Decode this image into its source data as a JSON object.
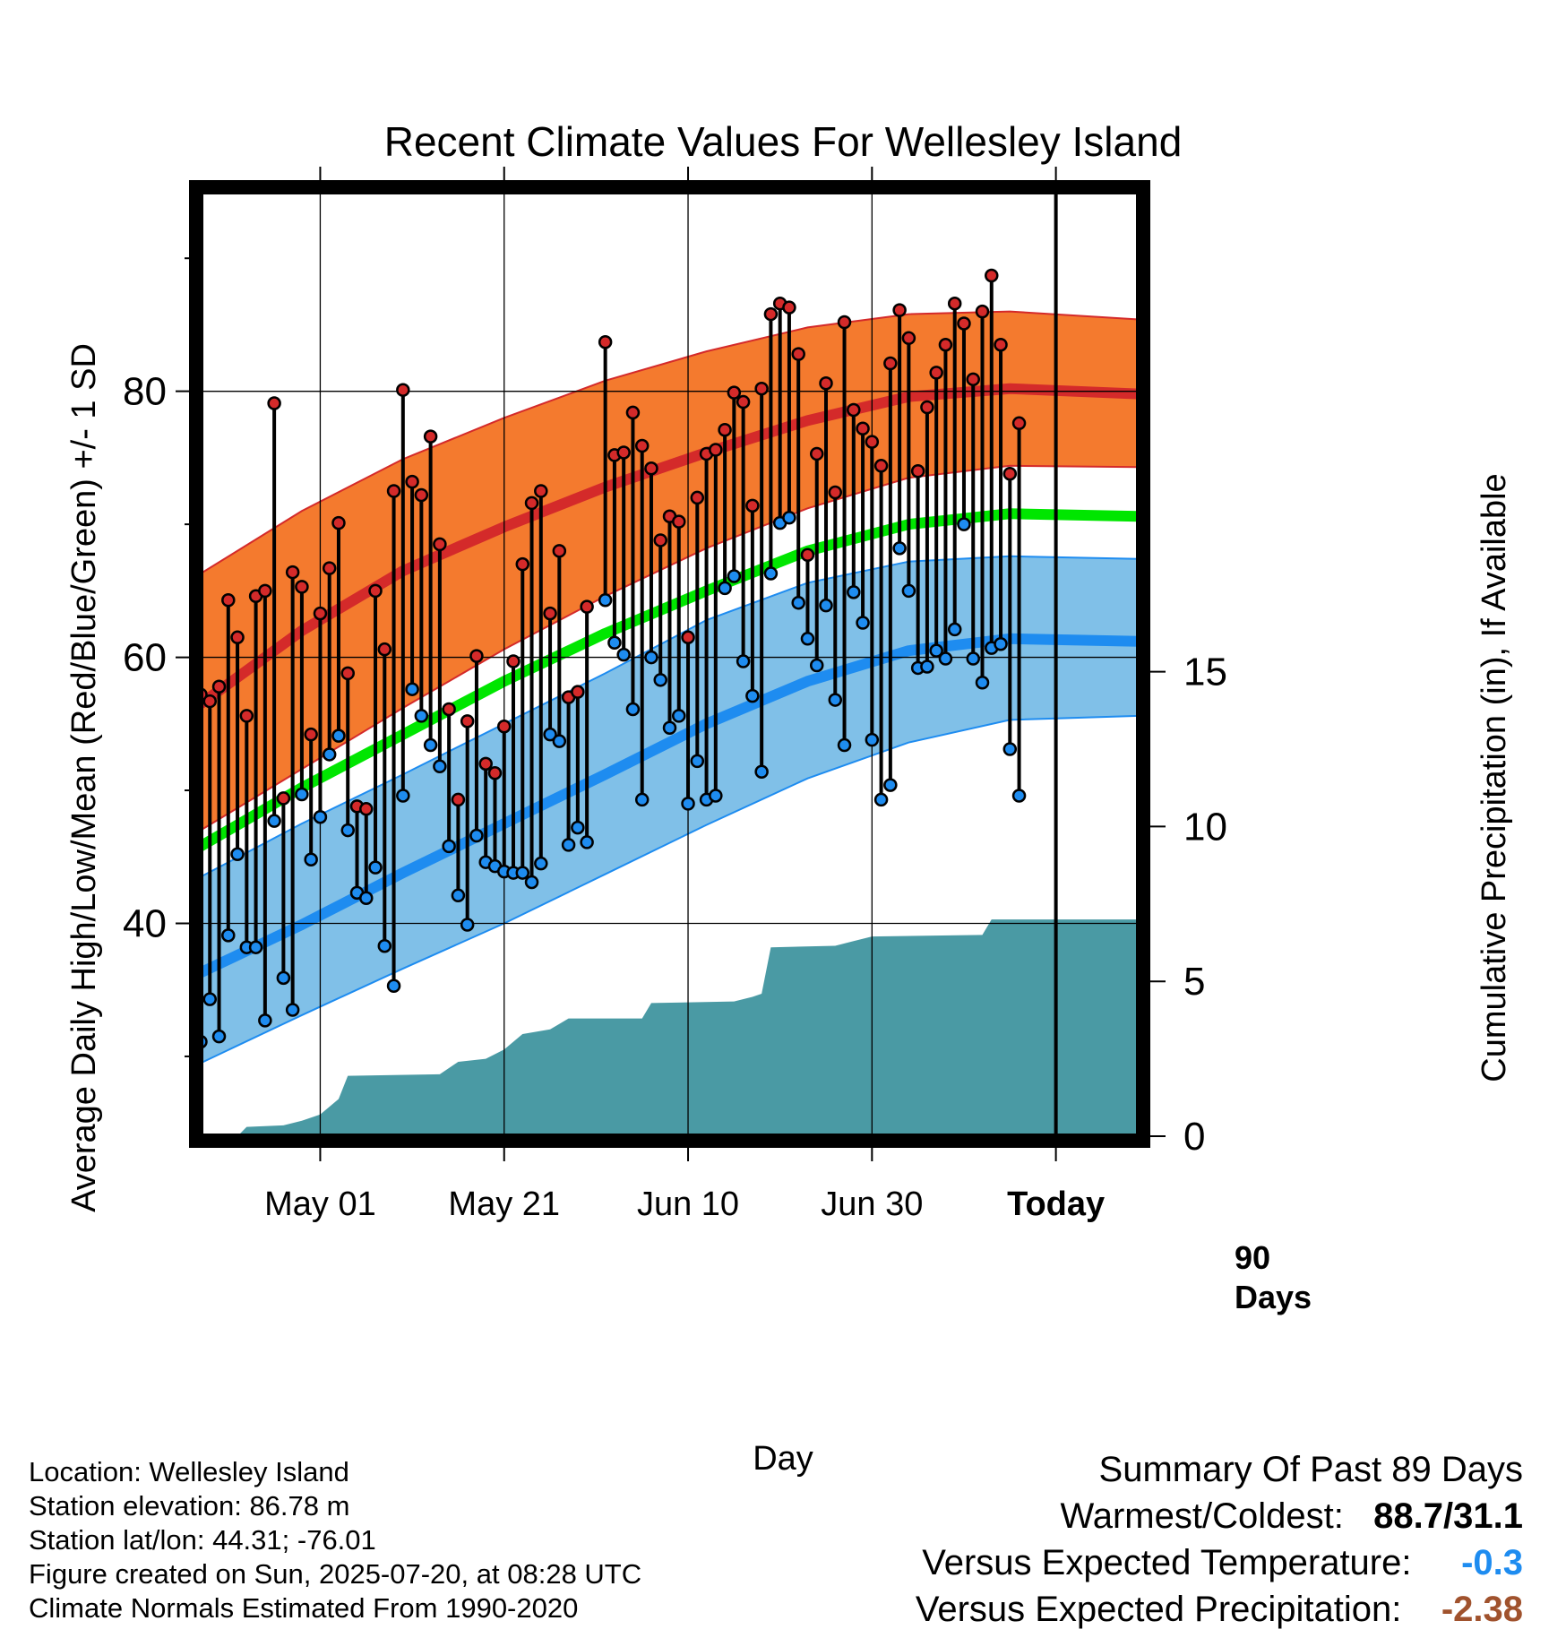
{
  "chart_data": {
    "type": "line",
    "title": "Recent Climate Values For Wellesley Island",
    "xlabel": "Day",
    "ylabel": "Average Daily High/Low/Mean (Red/Blue/Green) +/- 1 SD",
    "y2label": "Cumulative Precipitation (in), If Available",
    "x_start": "2025-04-18",
    "x_end": "2025-07-29",
    "today": "2025-07-20",
    "today_label": "90 Days",
    "ylim": [
      24,
      95
    ],
    "y2lim": [
      0,
      30.5
    ],
    "yticks": [
      40,
      60,
      80
    ],
    "y2ticks": [
      0,
      5,
      10,
      15
    ],
    "xticks": [
      {
        "date": "2025-05-01",
        "label": "May 01"
      },
      {
        "date": "2025-05-21",
        "label": "May 21"
      },
      {
        "date": "2025-06-10",
        "label": "Jun 10"
      },
      {
        "date": "2025-06-30",
        "label": "Jun 30"
      },
      {
        "date": "2025-07-20",
        "label": "Today"
      }
    ],
    "grid": true,
    "colors": {
      "high_band": "#f47a2e",
      "high_line": "#d42a2a",
      "low_band": "#80c0e8",
      "low_line": "#1e8cf0",
      "mean_line": "#00e600",
      "precip": "#4a9aa4",
      "high_dot": "#d42a2a",
      "low_dot": "#1e8cf0"
    },
    "normals": {
      "dates": [
        "2025-04-18",
        "2025-04-29",
        "2025-05-10",
        "2025-05-21",
        "2025-06-01",
        "2025-06-12",
        "2025-06-23",
        "2025-07-04",
        "2025-07-15",
        "2025-07-29"
      ],
      "high_mean": [
        56.5,
        62.0,
        66.5,
        69.8,
        72.8,
        75.4,
        77.8,
        79.6,
        80.2,
        79.8
      ],
      "high_plus_sd": [
        66.3,
        71.0,
        74.9,
        78.0,
        80.8,
        83.0,
        84.8,
        85.8,
        86.0,
        85.4
      ],
      "high_minus_sd": [
        47.0,
        51.6,
        56.2,
        60.6,
        64.6,
        68.2,
        71.2,
        73.5,
        74.4,
        74.3
      ],
      "mean": [
        45.8,
        50.2,
        54.2,
        58.2,
        61.8,
        65.0,
        68.0,
        70.0,
        70.8,
        70.6
      ],
      "low_mean": [
        36.3,
        39.9,
        43.8,
        47.5,
        51.2,
        55.0,
        58.2,
        60.5,
        61.4,
        61.2
      ],
      "low_plus_sd": [
        43.5,
        47.5,
        51.2,
        55.0,
        58.8,
        62.8,
        65.6,
        67.2,
        67.6,
        67.4
      ],
      "low_minus_sd": [
        29.5,
        33.1,
        36.6,
        40.0,
        43.7,
        47.4,
        50.9,
        53.6,
        55.3,
        55.6
      ]
    },
    "days": [
      {
        "date": "2025-04-18",
        "high": 57.2,
        "low": 31.1
      },
      {
        "date": "2025-04-19",
        "high": 56.7,
        "low": 34.3
      },
      {
        "date": "2025-04-20",
        "high": 57.8,
        "low": 31.5
      },
      {
        "date": "2025-04-21",
        "high": 64.3,
        "low": 39.1
      },
      {
        "date": "2025-04-22",
        "high": 61.5,
        "low": 45.2
      },
      {
        "date": "2025-04-23",
        "high": 55.6,
        "low": 38.2
      },
      {
        "date": "2025-04-24",
        "high": 64.6,
        "low": 38.2
      },
      {
        "date": "2025-04-25",
        "high": 65.0,
        "low": 32.7
      },
      {
        "date": "2025-04-26",
        "high": 79.1,
        "low": 47.7
      },
      {
        "date": "2025-04-27",
        "high": 49.4,
        "low": 35.9
      },
      {
        "date": "2025-04-28",
        "high": 66.4,
        "low": 33.5
      },
      {
        "date": "2025-04-29",
        "high": 65.3,
        "low": 49.7
      },
      {
        "date": "2025-04-30",
        "high": 54.2,
        "low": 44.8
      },
      {
        "date": "2025-05-01",
        "high": 63.3,
        "low": 48.0
      },
      {
        "date": "2025-05-02",
        "high": 66.7,
        "low": 52.7
      },
      {
        "date": "2025-05-03",
        "high": 70.1,
        "low": 54.1
      },
      {
        "date": "2025-05-04",
        "high": 58.8,
        "low": 47.0
      },
      {
        "date": "2025-05-05",
        "high": 48.8,
        "low": 42.3
      },
      {
        "date": "2025-05-06",
        "high": 48.6,
        "low": 41.9
      },
      {
        "date": "2025-05-07",
        "high": 65.0,
        "low": 44.2
      },
      {
        "date": "2025-05-08",
        "high": 60.6,
        "low": 38.3
      },
      {
        "date": "2025-05-09",
        "high": 72.5,
        "low": 35.3
      },
      {
        "date": "2025-05-10",
        "high": 80.1,
        "low": 49.6
      },
      {
        "date": "2025-05-11",
        "high": 73.2,
        "low": 57.6
      },
      {
        "date": "2025-05-12",
        "high": 72.2,
        "low": 55.6
      },
      {
        "date": "2025-05-13",
        "high": 76.6,
        "low": 53.4
      },
      {
        "date": "2025-05-14",
        "high": 68.5,
        "low": 51.8
      },
      {
        "date": "2025-05-15",
        "high": 56.1,
        "low": 45.8
      },
      {
        "date": "2025-05-16",
        "high": 49.3,
        "low": 42.1
      },
      {
        "date": "2025-05-17",
        "high": 55.2,
        "low": 39.9
      },
      {
        "date": "2025-05-18",
        "high": 60.1,
        "low": 46.6
      },
      {
        "date": "2025-05-19",
        "high": 52.0,
        "low": 44.6
      },
      {
        "date": "2025-05-20",
        "high": 51.3,
        "low": 44.3
      },
      {
        "date": "2025-05-21",
        "high": 54.8,
        "low": 43.9
      },
      {
        "date": "2025-05-22",
        "high": 59.7,
        "low": 43.8
      },
      {
        "date": "2025-05-23",
        "high": 67.0,
        "low": 43.8
      },
      {
        "date": "2025-05-24",
        "high": 71.6,
        "low": 43.1
      },
      {
        "date": "2025-05-25",
        "high": 72.5,
        "low": 44.5
      },
      {
        "date": "2025-05-26",
        "high": 63.3,
        "low": 54.2
      },
      {
        "date": "2025-05-27",
        "high": 68.0,
        "low": 53.7
      },
      {
        "date": "2025-05-28",
        "high": 57.0,
        "low": 45.9
      },
      {
        "date": "2025-05-29",
        "high": 57.4,
        "low": 47.2
      },
      {
        "date": "2025-05-30",
        "high": 63.8,
        "low": 46.1
      },
      {
        "date": "2025-06-01",
        "high": 83.7,
        "low": 64.3
      },
      {
        "date": "2025-06-02",
        "high": 75.2,
        "low": 61.1
      },
      {
        "date": "2025-06-03",
        "high": 75.4,
        "low": 60.2
      },
      {
        "date": "2025-06-04",
        "high": 78.4,
        "low": 56.1
      },
      {
        "date": "2025-06-05",
        "high": 75.9,
        "low": 49.3
      },
      {
        "date": "2025-06-06",
        "high": 74.2,
        "low": 60.0
      },
      {
        "date": "2025-06-07",
        "high": 68.8,
        "low": 58.3
      },
      {
        "date": "2025-06-08",
        "high": 70.6,
        "low": 54.7
      },
      {
        "date": "2025-06-09",
        "high": 70.2,
        "low": 55.6
      },
      {
        "date": "2025-06-10",
        "high": 61.5,
        "low": 49.0
      },
      {
        "date": "2025-06-11",
        "high": 72.0,
        "low": 52.2
      },
      {
        "date": "2025-06-12",
        "high": 75.3,
        "low": 49.3
      },
      {
        "date": "2025-06-13",
        "high": 75.6,
        "low": 49.6
      },
      {
        "date": "2025-06-14",
        "high": 77.1,
        "low": 65.2
      },
      {
        "date": "2025-06-15",
        "high": 79.9,
        "low": 66.1
      },
      {
        "date": "2025-06-16",
        "high": 79.2,
        "low": 59.7
      },
      {
        "date": "2025-06-17",
        "high": 71.4,
        "low": 57.1
      },
      {
        "date": "2025-06-18",
        "high": 80.2,
        "low": 51.4
      },
      {
        "date": "2025-06-19",
        "high": 85.8,
        "low": 66.3
      },
      {
        "date": "2025-06-20",
        "high": 86.6,
        "low": 70.1
      },
      {
        "date": "2025-06-21",
        "high": 86.3,
        "low": 70.5
      },
      {
        "date": "2025-06-22",
        "high": 82.8,
        "low": 64.1
      },
      {
        "date": "2025-06-23",
        "high": 67.7,
        "low": 61.4
      },
      {
        "date": "2025-06-24",
        "high": 75.3,
        "low": 59.4
      },
      {
        "date": "2025-06-25",
        "high": 80.6,
        "low": 63.9
      },
      {
        "date": "2025-06-26",
        "high": 72.4,
        "low": 56.8
      },
      {
        "date": "2025-06-27",
        "high": 85.2,
        "low": 53.4
      },
      {
        "date": "2025-06-28",
        "high": 78.6,
        "low": 64.9
      },
      {
        "date": "2025-06-29",
        "high": 77.2,
        "low": 62.6
      },
      {
        "date": "2025-06-30",
        "high": 76.2,
        "low": 53.8
      },
      {
        "date": "2025-07-01",
        "high": 74.4,
        "low": 49.3
      },
      {
        "date": "2025-07-02",
        "high": 82.1,
        "low": 50.4
      },
      {
        "date": "2025-07-03",
        "high": 86.1,
        "low": 68.2
      },
      {
        "date": "2025-07-04",
        "high": 84.0,
        "low": 65.0
      },
      {
        "date": "2025-07-05",
        "high": 74.0,
        "low": 59.2
      },
      {
        "date": "2025-07-06",
        "high": 78.8,
        "low": 59.3
      },
      {
        "date": "2025-07-07",
        "high": 81.4,
        "low": 60.5
      },
      {
        "date": "2025-07-08",
        "high": 83.5,
        "low": 59.9
      },
      {
        "date": "2025-07-09",
        "high": 86.6,
        "low": 62.1
      },
      {
        "date": "2025-07-10",
        "high": 85.1,
        "low": 70.0
      },
      {
        "date": "2025-07-11",
        "high": 80.9,
        "low": 59.9
      },
      {
        "date": "2025-07-12",
        "high": 86.0,
        "low": 58.1
      },
      {
        "date": "2025-07-13",
        "high": 88.7,
        "low": 60.7
      },
      {
        "date": "2025-07-14",
        "high": 83.5,
        "low": 61.0
      },
      {
        "date": "2025-07-15",
        "high": 73.8,
        "low": 53.1
      },
      {
        "date": "2025-07-16",
        "high": 77.6,
        "low": 49.6
      }
    ],
    "precip": {
      "dates": [
        "2025-04-18",
        "2025-04-22",
        "2025-04-23",
        "2025-04-27",
        "2025-04-29",
        "2025-05-01",
        "2025-05-03",
        "2025-05-04",
        "2025-05-14",
        "2025-05-16",
        "2025-05-19",
        "2025-05-21",
        "2025-05-23",
        "2025-05-26",
        "2025-05-28",
        "2025-06-05",
        "2025-06-06",
        "2025-06-15",
        "2025-06-17",
        "2025-06-18",
        "2025-06-19",
        "2025-06-26",
        "2025-06-28",
        "2025-06-30",
        "2025-07-12",
        "2025-07-13",
        "2025-07-29"
      ],
      "values": [
        0.0,
        0.0,
        0.3,
        0.35,
        0.5,
        0.7,
        1.2,
        1.95,
        2.0,
        2.4,
        2.5,
        2.8,
        3.3,
        3.45,
        3.8,
        3.8,
        4.3,
        4.35,
        4.5,
        4.6,
        6.1,
        6.15,
        6.3,
        6.45,
        6.5,
        7.0,
        7.0
      ]
    }
  },
  "info": {
    "location": "Location: Wellesley Island",
    "elevation": "Station elevation: 86.78 m",
    "latlon": "Station lat/lon: 44.31; -76.01",
    "created": "Figure created on Sun, 2025-07-20, at 08:28 UTC",
    "normals": "Climate Normals Estimated From 1990-2020"
  },
  "summary": {
    "title": "Summary Of Past 89 Days",
    "warmest_label": "Warmest/Coldest:",
    "warmest_value": "88.7/31.1",
    "temp_label": "Versus Expected Temperature:",
    "temp_value": "-0.3",
    "temp_color": "#1e8cf0",
    "precip_label": "Versus Expected Precipitation:",
    "precip_value": "-2.38",
    "precip_color": "#a0522d"
  }
}
